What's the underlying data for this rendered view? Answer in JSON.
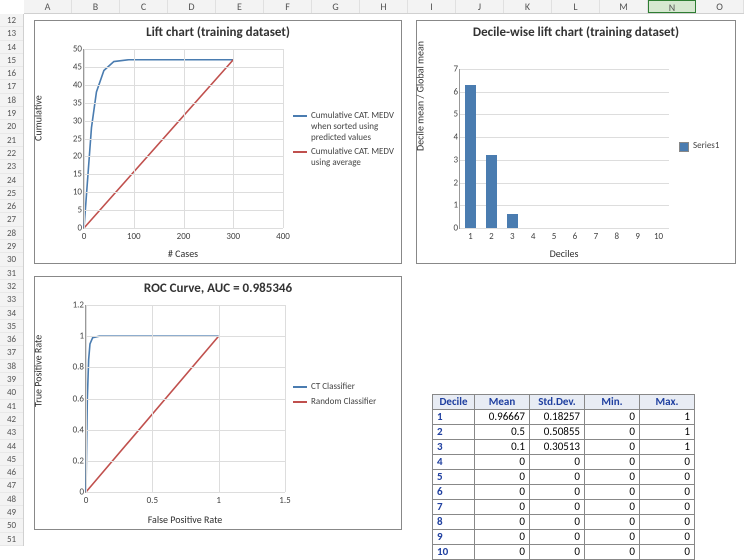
{
  "columns": [
    "A",
    "B",
    "C",
    "D",
    "E",
    "F",
    "G",
    "H",
    "I",
    "J",
    "K",
    "L",
    "M",
    "N",
    "O"
  ],
  "selected_column": "N",
  "row_start": 12,
  "row_end": 51,
  "lift_chart": {
    "type": "line",
    "title": "Lift chart (training dataset)",
    "xlabel": "# Cases",
    "ylabel": "Cumulative",
    "xlim": [
      0,
      400
    ],
    "xtick_step": 100,
    "ylim": [
      0,
      50
    ],
    "ytick_step": 5,
    "series": [
      {
        "name": "Cumulative CAT. MEDV when sorted using predicted values",
        "color": "#4a7cb0",
        "points": [
          [
            0,
            0
          ],
          [
            8,
            15
          ],
          [
            15,
            28
          ],
          [
            25,
            38
          ],
          [
            40,
            44
          ],
          [
            60,
            46.5
          ],
          [
            90,
            47
          ],
          [
            300,
            47
          ]
        ]
      },
      {
        "name": "Cumulative CAT. MEDV using average",
        "color": "#c0504d",
        "points": [
          [
            0,
            0
          ],
          [
            300,
            47
          ]
        ]
      }
    ],
    "grid_color": "#dddddd",
    "title_fontsize": 13
  },
  "decile_chart": {
    "type": "bar",
    "title": "Decile-wise lift chart (training dataset)",
    "xlabel": "Deciles",
    "ylabel": "Decile mean / Global mean",
    "xlim": [
      1,
      10
    ],
    "ylim": [
      0,
      7
    ],
    "ytick_step": 1,
    "categories": [
      1,
      2,
      3,
      4,
      5,
      6,
      7,
      8,
      9,
      10
    ],
    "values": [
      6.3,
      3.2,
      0.6,
      0,
      0,
      0,
      0,
      0,
      0,
      0
    ],
    "bar_color": "#4a7cb0",
    "legend": "Series1",
    "grid_color": "#dddddd",
    "title_fontsize": 13
  },
  "roc_chart": {
    "type": "line",
    "title": "ROC Curve, AUC = 0.985346",
    "xlabel": "False Positive Rate",
    "ylabel": "True Positive Rate",
    "xlim": [
      0,
      1.5
    ],
    "xtick_step": 0.5,
    "ylim": [
      0,
      1.2
    ],
    "ytick_step": 0.2,
    "series": [
      {
        "name": "CT Classifier",
        "color": "#4a7cb0",
        "points": [
          [
            0,
            0
          ],
          [
            0.01,
            0.6
          ],
          [
            0.02,
            0.85
          ],
          [
            0.03,
            0.95
          ],
          [
            0.05,
            0.99
          ],
          [
            0.1,
            1.0
          ],
          [
            1.0,
            1.0
          ]
        ]
      },
      {
        "name": "Random Classifier",
        "color": "#c0504d",
        "points": [
          [
            0,
            0
          ],
          [
            1,
            1
          ]
        ]
      }
    ],
    "grid_color": "#dddddd",
    "title_fontsize": 13
  },
  "stats_table": {
    "columns": [
      "Decile",
      "Mean",
      "Std.Dev.",
      "Min.",
      "Max."
    ],
    "rows": [
      [
        "1",
        "0.96667",
        "0.18257",
        "0",
        "1"
      ],
      [
        "2",
        "0.5",
        "0.50855",
        "0",
        "1"
      ],
      [
        "3",
        "0.1",
        "0.30513",
        "0",
        "1"
      ],
      [
        "4",
        "0",
        "0",
        "0",
        "0"
      ],
      [
        "5",
        "0",
        "0",
        "0",
        "0"
      ],
      [
        "6",
        "0",
        "0",
        "0",
        "0"
      ],
      [
        "7",
        "0",
        "0",
        "0",
        "0"
      ],
      [
        "8",
        "0",
        "0",
        "0",
        "0"
      ],
      [
        "9",
        "0",
        "0",
        "0",
        "0"
      ],
      [
        "10",
        "0",
        "0",
        "0",
        "0"
      ]
    ]
  }
}
